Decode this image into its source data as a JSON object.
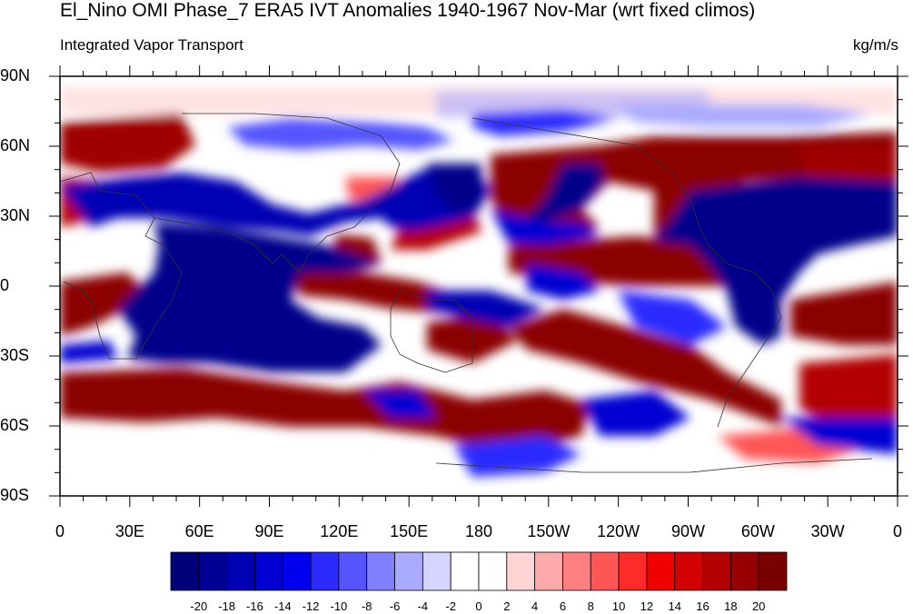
{
  "title": "El_Nino OMI Phase_7 ERA5 IVT Anomalies 1940-1967 Nov-Mar (wrt fixed climos)",
  "subtitle_left": "Integrated Vapor Transport",
  "units": "kg/m/s",
  "lat_ticks": [
    "90N",
    "60N",
    "30N",
    "0",
    "30S",
    "60S",
    "90S"
  ],
  "lon_ticks": [
    "0",
    "30E",
    "60E",
    "90E",
    "120E",
    "150E",
    "180",
    "150W",
    "120W",
    "90W",
    "60W",
    "30W",
    "0"
  ],
  "colorbar": {
    "labels": [
      "-20",
      "-18",
      "-16",
      "-14",
      "-12",
      "-10",
      "-8",
      "-6",
      "-4",
      "-2",
      "0",
      "2",
      "4",
      "6",
      "8",
      "10",
      "12",
      "14",
      "16",
      "18",
      "20"
    ],
    "colors": [
      "#00007a",
      "#000096",
      "#0000b4",
      "#0000d2",
      "#0000f0",
      "#2a2aff",
      "#5555ff",
      "#8080ff",
      "#aaaaff",
      "#d5d5ff",
      "#ffffff",
      "#ffffff",
      "#ffd5d5",
      "#ffaaaa",
      "#ff8080",
      "#ff5555",
      "#ff2a2a",
      "#f00000",
      "#d20000",
      "#b40000",
      "#960000",
      "#7a0000"
    ]
  },
  "colors": {
    "strong_positive": "#8b0000",
    "strong_negative": "#00008b",
    "background": "#ffffff"
  }
}
